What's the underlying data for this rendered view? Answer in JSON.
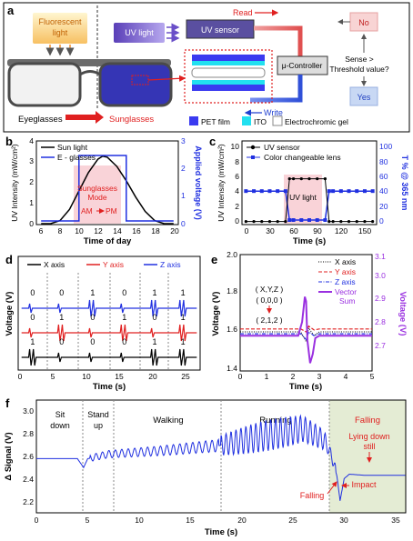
{
  "panel_a": {
    "letter": "a",
    "fluorescent_label_1": "Fluorescent",
    "fluorescent_label_2": "light",
    "uv_light_label": "UV light",
    "uv_sensor_label": "UV sensor",
    "read_label": "Read",
    "controller_label": "μ-Controller",
    "write_label": "Write",
    "decision_q1": "Sense >",
    "decision_q2": "Threshold value?",
    "no_label": "No",
    "yes_label": "Yes",
    "eyeglasses_label": "Eyeglasses",
    "sunglasses_label": "Sunglasses",
    "legend_pet": "PET film",
    "legend_ito": "ITO",
    "legend_gel": "Electrochromic gel",
    "colors": {
      "pet": "#3a3af0",
      "ito": "#22e0f0",
      "gel": "#ffffff",
      "uv": "#6a4fc8",
      "decision_no": "#f8d4d4",
      "decision_yes": "#c8d8f4"
    }
  },
  "panel_b": {
    "letter": "b",
    "ylabel": "UV Intensity (mW/cm²)",
    "y2label": "Applied voltage (V)",
    "xlabel": "Time of day",
    "legend": [
      "Sun light",
      "E - glasses"
    ],
    "annot_1": "Sunglasses",
    "annot_2": "Mode",
    "annot_3": "AM",
    "annot_4": "PM",
    "xticks": [
      "6",
      "8",
      "10",
      "12",
      "14",
      "16",
      "18",
      "20"
    ],
    "yticks": [
      "0",
      "1",
      "2",
      "3",
      "4"
    ],
    "y2ticks": [
      "0",
      "1",
      "2",
      "3"
    ]
  },
  "panel_c": {
    "letter": "c",
    "ylabel": "UV Intensity (mW/cm²)",
    "y2label": "T % @ 365 nm",
    "xlabel": "Time (s)",
    "legend": [
      "UV sensor",
      "Color changeable lens"
    ],
    "annot": "UV light",
    "xticks": [
      "0",
      "30",
      "60",
      "90",
      "120",
      "150"
    ],
    "yticks": [
      "0",
      "2",
      "4",
      "6",
      "8",
      "10"
    ],
    "y2ticks": [
      "0",
      "20",
      "40",
      "60",
      "80",
      "100"
    ]
  },
  "panel_d": {
    "letter": "d",
    "ylabel": "Voltage (V)",
    "xlabel": "Time (s)",
    "legend": [
      "X axis",
      "Y axis",
      "Z axis"
    ],
    "xticks": [
      "0",
      "5",
      "10",
      "15",
      "20",
      "25"
    ],
    "bits_z": [
      "0",
      "0",
      "1",
      "0",
      "1",
      "1"
    ],
    "bits_y": [
      "0",
      "1",
      "0",
      "1",
      "0",
      "1"
    ],
    "bits_x": [
      "1",
      "0",
      "0",
      "0",
      "1",
      "1"
    ]
  },
  "panel_e": {
    "letter": "e",
    "ylabel": "Voltage (V)",
    "y2label": "Voltage (V)",
    "xlabel": "Time (s)",
    "legend": [
      "X axis",
      "Y axis",
      "Z axis",
      "Vector",
      "Sum"
    ],
    "coord_1": "( X,Y,Z )",
    "coord_2": "( 0,0,0 )",
    "coord_3": "( 2,1,2 )",
    "xticks": [
      "0",
      "1",
      "2",
      "3",
      "4",
      "5"
    ],
    "yticks": [
      "1.4",
      "1.6",
      "1.8",
      "2.0"
    ],
    "y2ticks": [
      "2.7",
      "2.8",
      "2.9",
      "3.0",
      "3.1"
    ]
  },
  "panel_f": {
    "letter": "f",
    "ylabel": "Δ Signal (V)",
    "xlabel": "Time (s)",
    "phases": [
      "Sit",
      "down",
      "Stand",
      "up",
      "Walking",
      "Running",
      "Falling"
    ],
    "annot_lying_1": "Lying down",
    "annot_lying_2": "still",
    "annot_falling": "Falling",
    "annot_impact": "Impact",
    "xticks": [
      "0",
      "5",
      "10",
      "15",
      "20",
      "25",
      "30",
      "35"
    ],
    "yticks": [
      "2.2",
      "2.4",
      "2.6",
      "2.8",
      "3.0"
    ]
  },
  "chart_data": [
    {
      "type": "line",
      "panel": "b",
      "xlabel": "Time of day",
      "ylabel": "UV Intensity (mW/cm²)",
      "y2label": "Applied voltage (V)",
      "xlim": [
        5.5,
        20.5
      ],
      "ylim": [
        0,
        4
      ],
      "y2lim": [
        0,
        3
      ],
      "series": [
        {
          "name": "Sun light",
          "axis": "left",
          "x": [
            6,
            7,
            8,
            9,
            10,
            11,
            12,
            12.5,
            13,
            14,
            15,
            16,
            17,
            18,
            19,
            20
          ],
          "y": [
            0,
            0,
            0.15,
            0.7,
            1.6,
            2.5,
            3.15,
            3.3,
            3.25,
            2.8,
            2.1,
            1.3,
            0.6,
            0.15,
            0,
            0
          ]
        },
        {
          "name": "E - glasses",
          "axis": "right",
          "x": [
            6,
            10,
            10,
            15,
            15,
            20
          ],
          "y": [
            0.1,
            0.1,
            2.5,
            2.5,
            0.1,
            0.1
          ]
        }
      ]
    },
    {
      "type": "line",
      "panel": "c",
      "xlabel": "Time (s)",
      "ylabel": "UV Intensity (mW/cm²)",
      "y2label": "T % @ 365 nm",
      "xlim": [
        -5,
        165
      ],
      "ylim": [
        -0.3,
        11
      ],
      "y2lim": [
        -3,
        110
      ],
      "series": [
        {
          "name": "UV sensor",
          "axis": "left",
          "x": [
            0,
            10,
            20,
            30,
            40,
            50,
            55,
            60,
            70,
            80,
            90,
            100,
            105,
            110,
            120,
            130,
            140,
            150,
            160
          ],
          "y": [
            0,
            0,
            0,
            0,
            0,
            0,
            5.9,
            5.9,
            5.9,
            5.9,
            5.9,
            5.9,
            0,
            0,
            0,
            0,
            0,
            0,
            0
          ]
        },
        {
          "name": "Color changeable lens",
          "axis": "right",
          "x": [
            0,
            10,
            20,
            30,
            40,
            50,
            55,
            60,
            70,
            80,
            90,
            100,
            105,
            110,
            120,
            130,
            140,
            150,
            160
          ],
          "y": [
            42,
            42,
            42,
            42,
            42,
            42,
            2,
            2,
            2,
            2,
            2,
            2,
            42,
            42,
            42,
            42,
            42,
            42,
            42
          ]
        }
      ]
    },
    {
      "type": "line",
      "panel": "d",
      "xlabel": "Time (s)",
      "ylabel": "Voltage (V)",
      "xlim": [
        0,
        27
      ],
      "series": [
        {
          "name": "X axis",
          "bits": [
            1,
            0,
            0,
            0,
            1,
            1
          ]
        },
        {
          "name": "Y axis",
          "bits": [
            0,
            1,
            0,
            1,
            0,
            1
          ]
        },
        {
          "name": "Z axis",
          "bits": [
            0,
            0,
            1,
            0,
            1,
            1
          ]
        }
      ]
    },
    {
      "type": "line",
      "panel": "e",
      "xlabel": "Time (s)",
      "ylabel": "Voltage (V)",
      "y2label": "Voltage (V)",
      "xlim": [
        0,
        5
      ],
      "ylim": [
        1.4,
        2.0
      ],
      "y2lim": [
        2.65,
        3.15
      ],
      "series": [
        {
          "name": "X axis",
          "axis": "left",
          "x": [
            0,
            2.3,
            2.5,
            2.6,
            2.8,
            3.0,
            5
          ],
          "y": [
            1.6,
            1.6,
            1.55,
            1.62,
            1.58,
            1.6,
            1.6
          ]
        },
        {
          "name": "Y axis",
          "axis": "left",
          "x": [
            0,
            2.3,
            2.5,
            2.6,
            2.8,
            3.0,
            5
          ],
          "y": [
            1.615,
            1.615,
            1.6,
            1.63,
            1.61,
            1.615,
            1.615
          ]
        },
        {
          "name": "Z axis",
          "axis": "left",
          "x": [
            0,
            2.3,
            2.5,
            2.6,
            2.8,
            3.0,
            5
          ],
          "y": [
            1.59,
            1.59,
            1.56,
            1.6,
            1.58,
            1.59,
            1.59
          ]
        },
        {
          "name": "Vector Sum",
          "axis": "right",
          "x": [
            0,
            2.2,
            2.35,
            2.45,
            2.5,
            2.55,
            2.65,
            2.75,
            2.85,
            3.0,
            5
          ],
          "y": [
            2.8,
            2.8,
            2.86,
            2.97,
            2.95,
            2.78,
            2.68,
            2.72,
            2.79,
            2.8,
            2.8
          ]
        }
      ]
    },
    {
      "type": "line",
      "panel": "f",
      "xlabel": "Time (s)",
      "ylabel": "Δ Signal (V)",
      "xlim": [
        0,
        36
      ],
      "ylim": [
        2.1,
        3.1
      ],
      "series": [
        {
          "name": "Δ Signal",
          "x": [
            0,
            4,
            4.6,
            5,
            7,
            12,
            18,
            22,
            26,
            28,
            28.8,
            29.3,
            29.6,
            30,
            30.5,
            32,
            34,
            36
          ],
          "y": [
            2.58,
            2.58,
            2.5,
            2.58,
            2.62,
            2.65,
            2.7,
            2.78,
            2.85,
            2.75,
            2.6,
            2.42,
            2.2,
            2.4,
            2.44,
            2.43,
            2.43,
            2.43
          ]
        }
      ]
    }
  ]
}
